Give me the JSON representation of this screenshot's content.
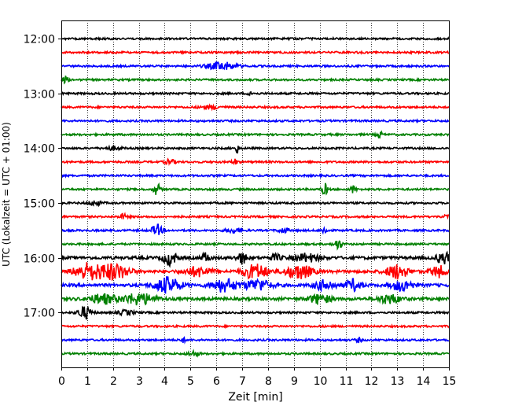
{
  "chart_data": {
    "type": "line",
    "title": "",
    "xlabel": "Zeit  [min]",
    "ylabel": "UTC (Lokalzeit = UTC + 01:00)",
    "xlim": [
      0,
      15
    ],
    "x_ticks": [
      0,
      1,
      2,
      3,
      4,
      5,
      6,
      7,
      8,
      9,
      10,
      11,
      12,
      13,
      14,
      15
    ],
    "x_tick_labels": [
      "0",
      "1",
      "2",
      "3",
      "4",
      "5",
      "6",
      "7",
      "8",
      "9",
      "10",
      "11",
      "12",
      "13",
      "14",
      "15"
    ],
    "y_tick_labels": [
      "12:00",
      "13:00",
      "14:00",
      "15:00",
      "16:00",
      "17:00"
    ],
    "y_range": [
      "11:40",
      "18:00"
    ],
    "vertical_grid": true,
    "grid_style": "dotted",
    "trace_interval_minutes": 15,
    "trace_colors": [
      "#000000",
      "#ff0000",
      "#0000ff",
      "#008000"
    ],
    "traces": [
      {
        "start": "12:00",
        "color": "#000000"
      },
      {
        "start": "12:15",
        "color": "#ff0000"
      },
      {
        "start": "12:30",
        "color": "#0000ff"
      },
      {
        "start": "12:45",
        "color": "#008000"
      },
      {
        "start": "13:00",
        "color": "#000000"
      },
      {
        "start": "13:15",
        "color": "#ff0000"
      },
      {
        "start": "13:30",
        "color": "#0000ff"
      },
      {
        "start": "13:45",
        "color": "#008000"
      },
      {
        "start": "14:00",
        "color": "#000000"
      },
      {
        "start": "14:15",
        "color": "#ff0000"
      },
      {
        "start": "14:30",
        "color": "#0000ff"
      },
      {
        "start": "14:45",
        "color": "#008000"
      },
      {
        "start": "15:00",
        "color": "#000000"
      },
      {
        "start": "15:15",
        "color": "#ff0000"
      },
      {
        "start": "15:30",
        "color": "#0000ff"
      },
      {
        "start": "15:45",
        "color": "#008000"
      },
      {
        "start": "16:00",
        "color": "#000000"
      },
      {
        "start": "16:15",
        "color": "#ff0000"
      },
      {
        "start": "16:30",
        "color": "#0000ff"
      },
      {
        "start": "16:45",
        "color": "#008000"
      },
      {
        "start": "17:00",
        "color": "#000000"
      },
      {
        "start": "17:15",
        "color": "#ff0000"
      },
      {
        "start": "17:30",
        "color": "#0000ff"
      },
      {
        "start": "17:45",
        "color": "#008000"
      }
    ]
  }
}
